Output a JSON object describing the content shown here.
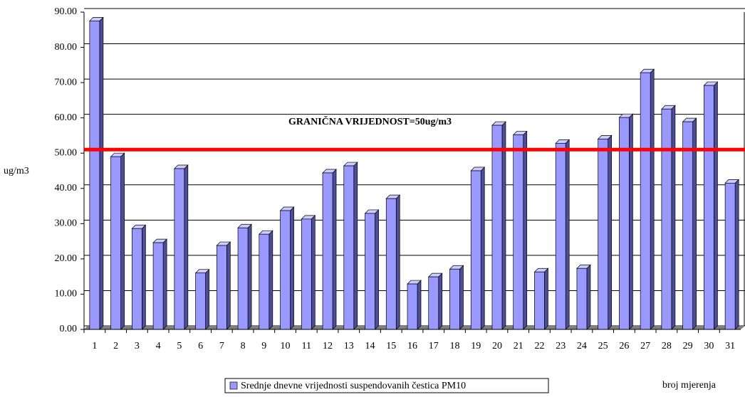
{
  "chart_data": {
    "type": "bar",
    "y_label": "ug/m3",
    "x_label": "broj mjerenja",
    "limit": 50,
    "limit_label": "GRANIČNA VRIJEDNOST=50ug/m3",
    "limit_color": "#ff0000",
    "categories": [
      "1",
      "2",
      "3",
      "4",
      "5",
      "6",
      "7",
      "8",
      "9",
      "10",
      "11",
      "12",
      "13",
      "14",
      "15",
      "16",
      "17",
      "18",
      "19",
      "20",
      "21",
      "22",
      "23",
      "24",
      "25",
      "26",
      "27",
      "28",
      "29",
      "30",
      "31"
    ],
    "series": [
      {
        "name": "Srednje dnevne vrijednosti suspendovanih čestica PM10",
        "color": "#9999ff",
        "values": [
          87.5,
          49,
          28.6,
          24.6,
          45.6,
          16,
          23.8,
          28.8,
          27,
          33.7,
          31.3,
          44.4,
          46.4,
          32.9,
          37.1,
          12.9,
          14.9,
          17.1,
          45,
          57.9,
          55.2,
          16.3,
          52.8,
          17.3,
          54,
          60.1,
          72.8,
          62.5,
          58.9,
          69.2,
          41.5
        ]
      }
    ],
    "ylim": [
      0,
      90
    ],
    "yticks": [
      {
        "value": 0,
        "label": "0.00"
      },
      {
        "value": 10,
        "label": "10.00"
      },
      {
        "value": 20,
        "label": "20.00"
      },
      {
        "value": 30,
        "label": "30.00"
      },
      {
        "value": 40,
        "label": "40.00"
      },
      {
        "value": 50,
        "label": "50.00"
      },
      {
        "value": 60,
        "label": "60.00"
      },
      {
        "value": 70,
        "label": "70.00"
      },
      {
        "value": 80,
        "label": "80.00"
      },
      {
        "value": 90,
        "label": "90.00"
      }
    ],
    "grid": true
  }
}
